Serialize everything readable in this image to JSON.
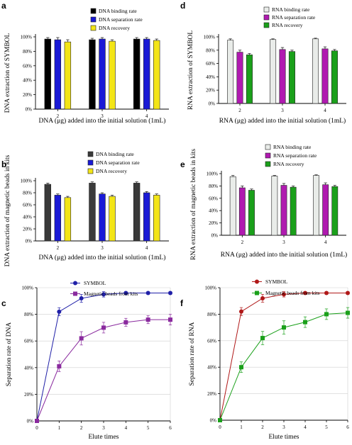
{
  "chart_data": [
    {
      "panel": "a",
      "type": "bar",
      "categories": [
        "2",
        "3",
        "4"
      ],
      "xlabel": "DNA (μg) added into the initial solution (1mL)",
      "ylabel": "DNA extraction of SYMBOL",
      "ylim": [
        0,
        100
      ],
      "yticks": [
        "0%",
        "20%",
        "40%",
        "60%",
        "80%",
        "100%"
      ],
      "legend_position": "top-right",
      "series": [
        {
          "name": "DNA binding rate",
          "color": "#000000",
          "values": [
            97,
            96,
            97
          ],
          "errors": [
            2,
            2,
            2
          ]
        },
        {
          "name": "DNA separation rate",
          "color": "#1a1ad6",
          "values": [
            96,
            97,
            97
          ],
          "errors": [
            3,
            2,
            2
          ]
        },
        {
          "name": "DNA recovery",
          "color": "#f3e516",
          "values": [
            93,
            94,
            95
          ],
          "errors": [
            3,
            2,
            2
          ]
        }
      ]
    },
    {
      "panel": "b",
      "type": "bar",
      "categories": [
        "2",
        "3",
        "4"
      ],
      "xlabel": "DNA (μg) added into the initial solution (1mL)",
      "ylabel": "DNA extraction of magnetic beads in kits",
      "ylim": [
        0,
        100
      ],
      "yticks": [
        "0%",
        "20%",
        "40%",
        "60%",
        "80%",
        "100%"
      ],
      "legend_position": "top-right",
      "series": [
        {
          "name": "DNA binding rate",
          "color": "#3a3a3a",
          "values": [
            94,
            96,
            96
          ],
          "errors": [
            2,
            2,
            2
          ]
        },
        {
          "name": "DNA separation rate",
          "color": "#1a1ad6",
          "values": [
            76,
            78,
            80
          ],
          "errors": [
            2,
            2,
            2
          ]
        },
        {
          "name": "DNA recovery",
          "color": "#f3e516",
          "values": [
            72,
            74,
            76
          ],
          "errors": [
            2,
            2,
            2
          ]
        }
      ]
    },
    {
      "panel": "c",
      "type": "line",
      "x": [
        0,
        1,
        2,
        3,
        4,
        5,
        6
      ],
      "xlabel": "Elute times",
      "ylabel": "Separation rate of DNA",
      "ylim": [
        0,
        100
      ],
      "xlim": [
        0,
        6
      ],
      "yticks": [
        "0%",
        "20%",
        "40%",
        "60%",
        "80%",
        "100%"
      ],
      "xticks": [
        "0",
        "1",
        "2",
        "3",
        "4",
        "5",
        "6"
      ],
      "legend_position": "top",
      "series": [
        {
          "name": "SYMBOL",
          "color": "#2020a8",
          "marker": "circle",
          "values": [
            0,
            82,
            92,
            95,
            96,
            96,
            96
          ],
          "errors": [
            0,
            3,
            3,
            2,
            1,
            1,
            1
          ]
        },
        {
          "name": "Magnetic beads from kits",
          "color": "#8a2a9e",
          "marker": "square",
          "values": [
            0,
            41,
            62,
            70,
            74,
            76,
            76
          ],
          "errors": [
            0,
            4,
            5,
            4,
            3,
            3,
            4
          ]
        }
      ]
    },
    {
      "panel": "d",
      "type": "bar",
      "categories": [
        "2",
        "3",
        "4"
      ],
      "xlabel": "RNA (μg) added into the initial solution (1mL)",
      "ylabel": "RNA extraction of SYMBOL",
      "ylim": [
        0,
        100
      ],
      "yticks": [
        "0%",
        "20%",
        "40%",
        "60%",
        "80%",
        "100%"
      ],
      "legend_position": "top-right",
      "series": [
        {
          "name": "RNA binding rate",
          "color": "#e9ece9",
          "values": [
            95,
            96,
            97
          ],
          "errors": [
            2,
            1,
            1
          ]
        },
        {
          "name": "RNA separation rate",
          "color": "#b01ab0",
          "values": [
            77,
            81,
            82
          ],
          "errors": [
            3,
            3,
            3
          ]
        },
        {
          "name": "RNA recovery",
          "color": "#1aa01a",
          "values": [
            73,
            78,
            79
          ],
          "errors": [
            2,
            2,
            2
          ]
        }
      ]
    },
    {
      "panel": "e",
      "type": "bar",
      "categories": [
        "2",
        "3",
        "4"
      ],
      "xlabel": "RNA (μg) added into the initial solution (1mL)",
      "ylabel": "RNA extraction of magnetic beads in kits",
      "ylim": [
        0,
        100
      ],
      "yticks": [
        "0%",
        "20%",
        "40%",
        "60%",
        "80%",
        "100%"
      ],
      "legend_position": "top-right",
      "series": [
        {
          "name": "RNA binding rate",
          "color": "#e9ece9",
          "values": [
            95,
            96,
            97
          ],
          "errors": [
            2,
            1,
            1
          ]
        },
        {
          "name": "RNA separation rate",
          "color": "#b01ab0",
          "values": [
            77,
            81,
            82
          ],
          "errors": [
            3,
            3,
            3
          ]
        },
        {
          "name": "RNA recovery",
          "color": "#1aa01a",
          "values": [
            73,
            78,
            79
          ],
          "errors": [
            2,
            2,
            2
          ]
        }
      ]
    },
    {
      "panel": "f",
      "type": "line",
      "x": [
        0,
        1,
        2,
        3,
        4,
        5,
        6
      ],
      "xlabel": "Elute times",
      "ylabel": "Separation rate of RNA",
      "ylim": [
        0,
        100
      ],
      "xlim": [
        0,
        6
      ],
      "yticks": [
        "0%",
        "20%",
        "40%",
        "60%",
        "80%",
        "100%"
      ],
      "xticks": [
        "0",
        "1",
        "2",
        "3",
        "4",
        "5",
        "6"
      ],
      "legend_position": "top",
      "series": [
        {
          "name": "SYMBOL",
          "color": "#b01818",
          "marker": "circle",
          "values": [
            0,
            82,
            92,
            95,
            96,
            96,
            96
          ],
          "errors": [
            0,
            3,
            3,
            2,
            1,
            1,
            1
          ]
        },
        {
          "name": "Magnetic beads from kits",
          "color": "#1aa01a",
          "marker": "square",
          "values": [
            0,
            40,
            62,
            70,
            74,
            80,
            81
          ],
          "errors": [
            0,
            4,
            5,
            5,
            4,
            4,
            4
          ]
        }
      ]
    }
  ]
}
